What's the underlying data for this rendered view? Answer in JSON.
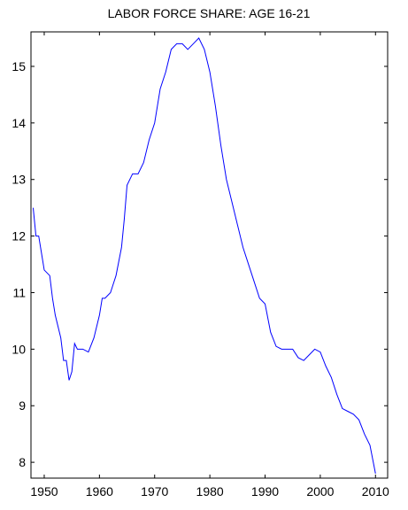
{
  "chart_data": {
    "type": "line",
    "title": "LABOR FORCE SHARE: AGE 16-21",
    "x": [
      1948,
      1948.5,
      1949,
      1949.5,
      1950,
      1951,
      1951.5,
      1952,
      1953,
      1953.5,
      1954,
      1954.5,
      1955,
      1955.5,
      1956,
      1957,
      1958,
      1959,
      1960,
      1960.5,
      1961,
      1962,
      1963,
      1964,
      1964.5,
      1965,
      1966,
      1967,
      1968,
      1969,
      1970,
      1970.5,
      1971,
      1972,
      1973,
      1974,
      1975,
      1976,
      1977,
      1978,
      1979,
      1980,
      1981,
      1982,
      1983,
      1984,
      1985,
      1986,
      1987,
      1988,
      1989,
      1990,
      1991,
      1992,
      1993,
      1994,
      1995,
      1996,
      1997,
      1998,
      1999,
      2000,
      2001,
      2002,
      2003,
      2004,
      2005,
      2006,
      2007,
      2008,
      2009,
      2010
    ],
    "series": [
      {
        "color": "#0000ff",
        "values": [
          12.5,
          12.0,
          12.0,
          11.7,
          11.4,
          11.3,
          10.9,
          10.6,
          10.2,
          9.8,
          9.8,
          9.45,
          9.6,
          10.1,
          10.0,
          10.0,
          9.95,
          10.2,
          10.6,
          10.9,
          10.9,
          11.0,
          11.3,
          11.8,
          12.3,
          12.9,
          13.1,
          13.1,
          13.3,
          13.7,
          14.0,
          14.3,
          14.6,
          14.9,
          15.3,
          15.4,
          15.4,
          15.3,
          15.4,
          15.5,
          15.3,
          14.9,
          14.3,
          13.6,
          13.0,
          12.6,
          12.2,
          11.8,
          11.5,
          11.2,
          10.9,
          10.8,
          10.3,
          10.05,
          10.0,
          10.0,
          10.0,
          9.85,
          9.8,
          9.9,
          10.0,
          9.95,
          9.7,
          9.5,
          9.2,
          8.95,
          8.9,
          8.85,
          8.75,
          8.5,
          8.3,
          7.8
        ]
      }
    ],
    "xlim": [
      1947.6,
      2012.2
    ],
    "ylim": [
      7.72,
      15.61
    ],
    "xticks": [
      1950,
      1960,
      1970,
      1980,
      1990,
      2000,
      2010
    ],
    "yticks": [
      8,
      9,
      10,
      11,
      12,
      13,
      14,
      15
    ]
  }
}
